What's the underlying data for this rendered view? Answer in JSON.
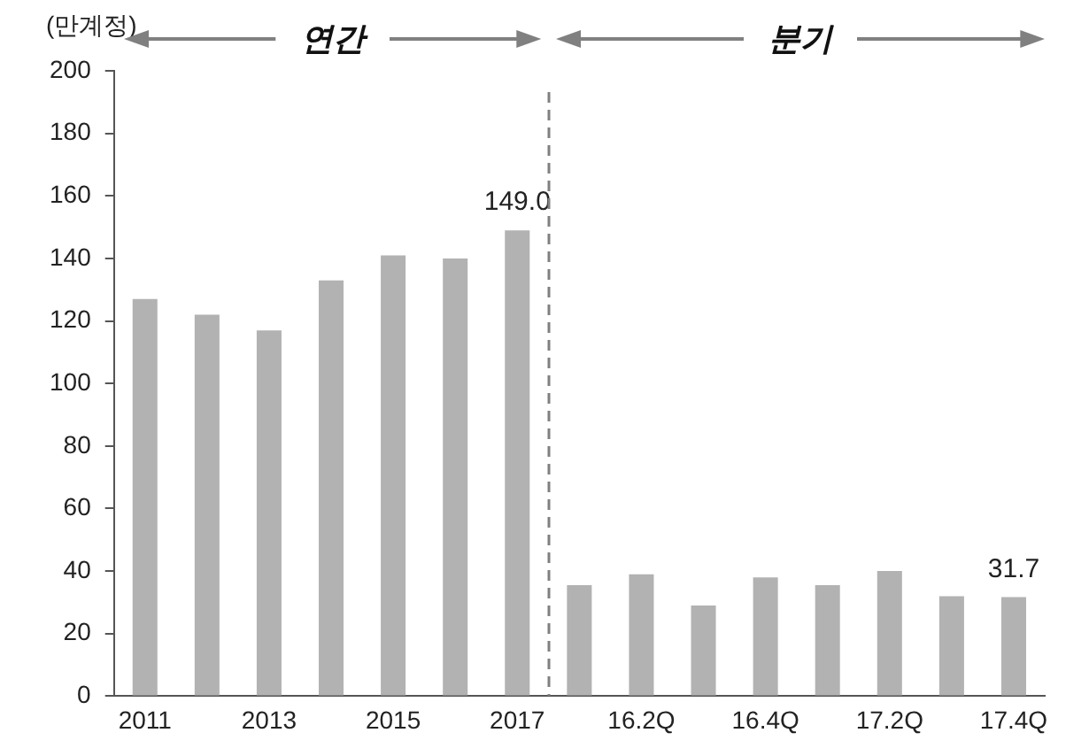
{
  "chart_data": {
    "type": "bar",
    "ylabel": "(만계정)",
    "categories": [
      "2011",
      null,
      "2013",
      null,
      "2015",
      null,
      "2017",
      null,
      "16.2Q",
      null,
      "16.4Q",
      null,
      "17.2Q",
      null,
      "17.4Q"
    ],
    "values": [
      127,
      122,
      117,
      133,
      141,
      140,
      149.0,
      35.5,
      39,
      29,
      38,
      35.5,
      40,
      32,
      31.7
    ],
    "color": "#b2b2b2",
    "value_labels": [
      null,
      null,
      null,
      null,
      null,
      null,
      "149.0",
      null,
      null,
      null,
      null,
      null,
      null,
      null,
      "31.7"
    ],
    "annotations": [
      "연간",
      "분기"
    ],
    "ylim": [
      0,
      200
    ],
    "yticks": [
      0,
      20,
      40,
      60,
      80,
      100,
      120,
      140,
      160,
      180,
      200
    ],
    "grid": false,
    "legend": false
  }
}
